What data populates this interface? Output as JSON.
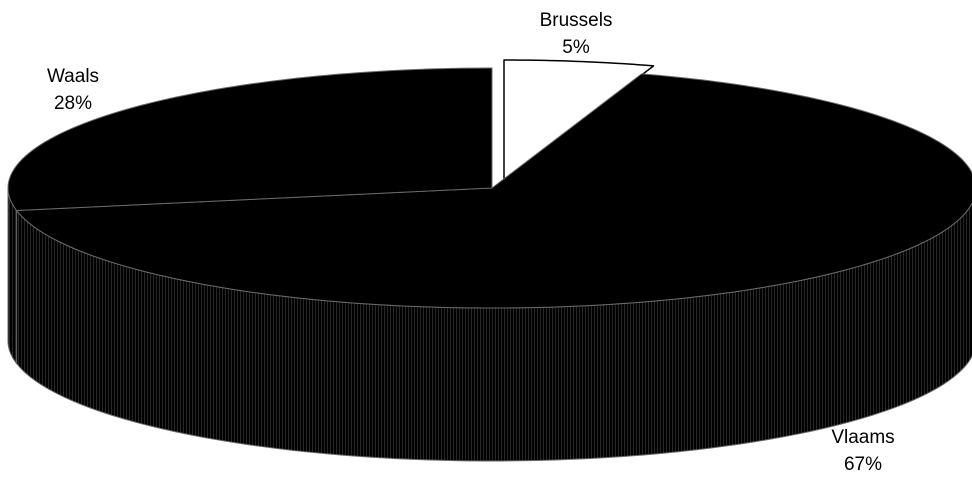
{
  "chart_data": {
    "type": "pie",
    "title": "",
    "style": "3d-exploded",
    "start_angle_deg": 0,
    "direction": "clockwise",
    "slices": [
      {
        "name": "Brussels",
        "value": 5,
        "label": "5%",
        "color": "#ffffff"
      },
      {
        "name": "Vlaams",
        "value": 67,
        "label": "67%",
        "color": "#000000"
      },
      {
        "name": "Waals",
        "value": 28,
        "label": "28%",
        "color": "#000000"
      }
    ]
  },
  "colors": {
    "background": "#ffffff",
    "outline": "#6a6a6a",
    "wall_hatch": "#9a9a9a"
  }
}
